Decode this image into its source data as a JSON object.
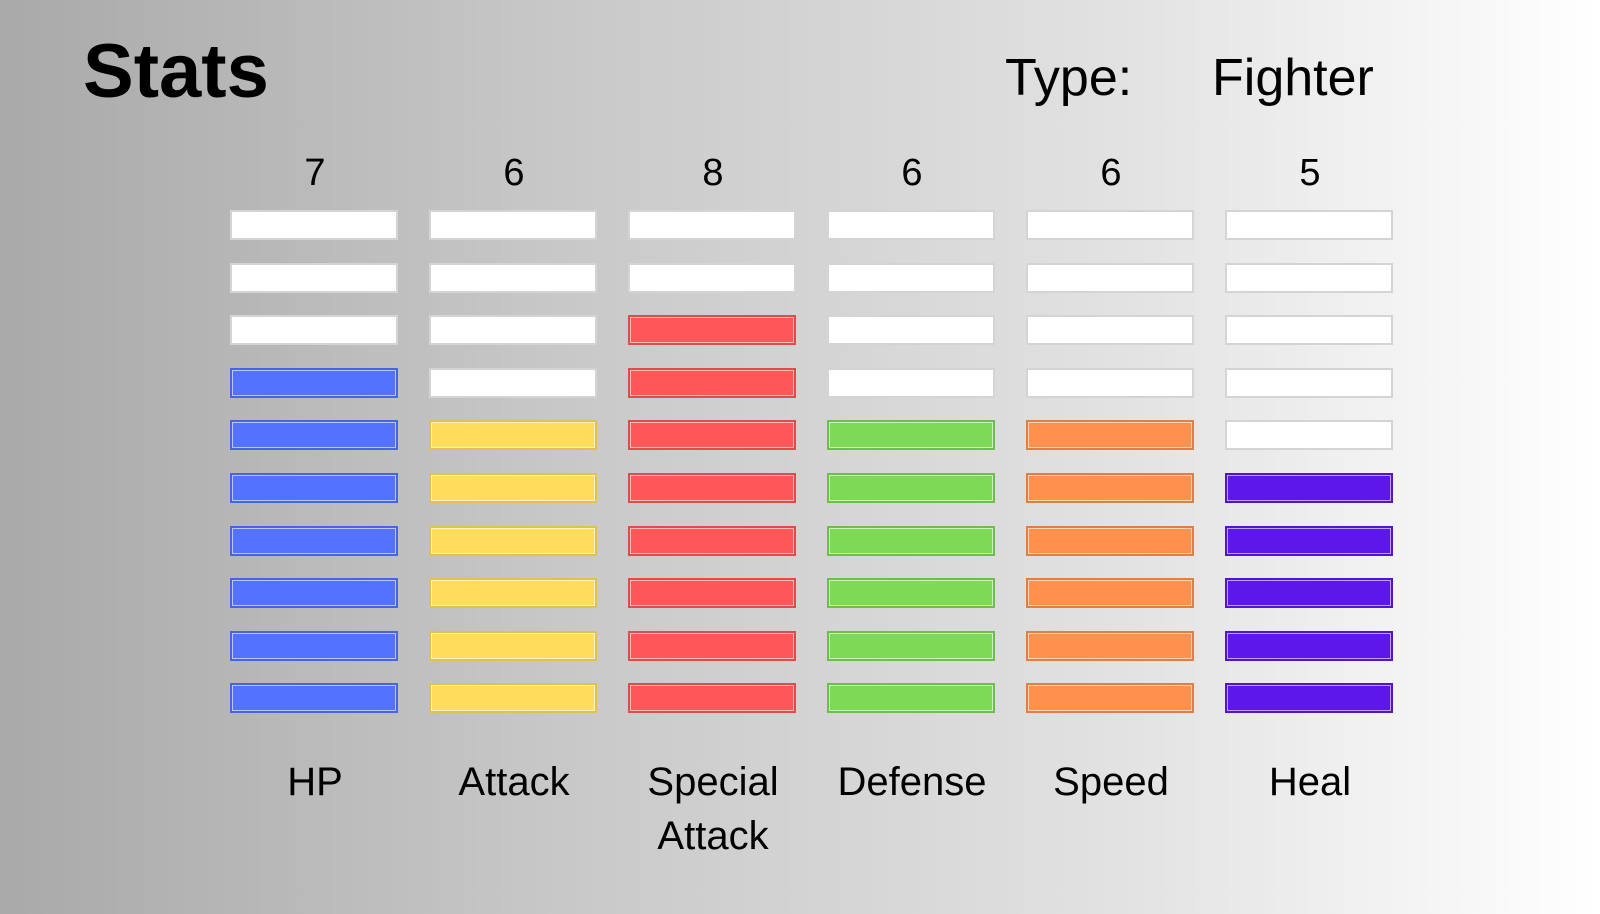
{
  "header": {
    "title": "Stats",
    "type_label": "Type:",
    "type_value": "Fighter"
  },
  "chart_data": {
    "type": "bar",
    "max_segments": 10,
    "empty_color": "#ffffff",
    "stats": [
      {
        "label": "HP",
        "value": 7,
        "display_value": "7",
        "color": "#5272ff"
      },
      {
        "label": "Attack",
        "value": 6,
        "display_value": "6",
        "color": "#ffdd5c"
      },
      {
        "label": "Special\nAttack",
        "value": 8,
        "display_value": "8",
        "color": "#ff5757"
      },
      {
        "label": "Defense",
        "value": 6,
        "display_value": "6",
        "color": "#7ed957"
      },
      {
        "label": "Speed",
        "value": 6,
        "display_value": "6",
        "color": "#ff914d"
      },
      {
        "label": "Heal",
        "value": 5,
        "display_value": "5",
        "color": "#5e17eb"
      }
    ]
  }
}
